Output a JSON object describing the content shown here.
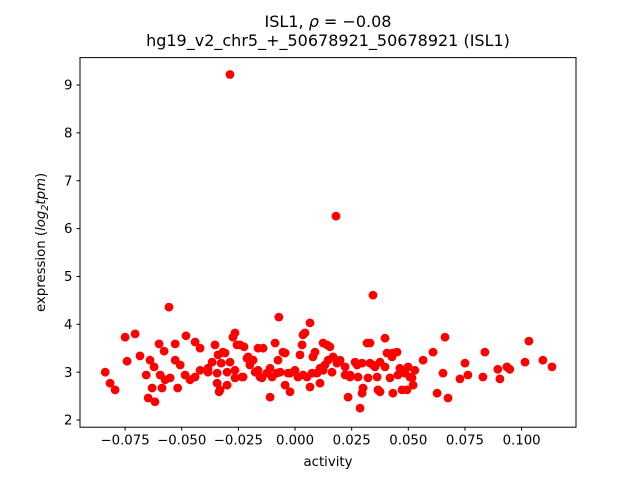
{
  "figure": {
    "background": "#ffffff",
    "frame_color": "#000000"
  },
  "chart_data": {
    "type": "scatter",
    "title_line1": "ISL1, ρ = −0.08",
    "title_line1_parts": [
      {
        "t": "ISL1, ",
        "i": false
      },
      {
        "t": "ρ",
        "i": true
      },
      {
        "t": " = −0.08",
        "i": false
      }
    ],
    "title_line2": "hg19_v2_chr5_+_50678921_50678921 (ISL1)",
    "xlabel": "activity",
    "ylabel": "expression (log₂tpm)",
    "ylabel_parts": [
      {
        "t": "expression (",
        "i": false
      },
      {
        "t": "log",
        "i": true
      },
      {
        "t": "2",
        "i": true,
        "sub": true
      },
      {
        "t": "tpm",
        "i": true
      },
      {
        "t": ")",
        "i": false
      }
    ],
    "xlim": [
      -0.0949,
      0.124
    ],
    "ylim": [
      1.85,
      9.573
    ],
    "x_ticks": [
      -0.075,
      -0.05,
      -0.025,
      0.0,
      0.025,
      0.05,
      0.075,
      0.1
    ],
    "x_tick_labels": [
      "−0.075",
      "−0.050",
      "−0.025",
      "0.000",
      "0.025",
      "0.050",
      "0.075",
      "0.100"
    ],
    "y_ticks": [
      2,
      3,
      4,
      5,
      6,
      7,
      8,
      9
    ],
    "y_tick_labels": [
      "2",
      "3",
      "4",
      "5",
      "6",
      "7",
      "8",
      "9"
    ],
    "grid": false,
    "legend": null,
    "marker": {
      "color": "#ff0000",
      "radius_px": 4.4
    },
    "series": [
      {
        "name": "ISL1",
        "points": [
          [
            -0.0838,
            3.0
          ],
          [
            -0.0816,
            2.77
          ],
          [
            -0.0794,
            2.63
          ],
          [
            -0.075,
            3.73
          ],
          [
            -0.0741,
            3.23
          ],
          [
            -0.0706,
            3.8
          ],
          [
            -0.0684,
            3.34
          ],
          [
            -0.0657,
            2.94
          ],
          [
            -0.0648,
            2.46
          ],
          [
            -0.064,
            3.25
          ],
          [
            -0.0631,
            2.67
          ],
          [
            -0.0622,
            3.11
          ],
          [
            -0.0618,
            2.38
          ],
          [
            -0.06,
            3.59
          ],
          [
            -0.0595,
            2.94
          ],
          [
            -0.0587,
            2.67
          ],
          [
            -0.0578,
            3.44
          ],
          [
            -0.0573,
            2.84
          ],
          [
            -0.0556,
            4.36
          ],
          [
            -0.0551,
            2.88
          ],
          [
            -0.0529,
            3.59
          ],
          [
            -0.0529,
            3.25
          ],
          [
            -0.0518,
            2.67
          ],
          [
            -0.0507,
            3.15
          ],
          [
            -0.0485,
            2.94
          ],
          [
            -0.0481,
            3.76
          ],
          [
            -0.0463,
            2.84
          ],
          [
            -0.0441,
            3.63
          ],
          [
            -0.0441,
            2.9
          ],
          [
            -0.0419,
            3.5
          ],
          [
            -0.0419,
            3.04
          ],
          [
            -0.0384,
            3.08
          ],
          [
            -0.0384,
            3.0
          ],
          [
            -0.0366,
            3.21
          ],
          [
            -0.0353,
            3.57
          ],
          [
            -0.0344,
            2.98
          ],
          [
            -0.0344,
            2.77
          ],
          [
            -0.034,
            3.36
          ],
          [
            -0.0335,
            2.59
          ],
          [
            -0.0331,
            2.63
          ],
          [
            -0.0326,
            3.19
          ],
          [
            -0.0318,
            3.42
          ],
          [
            -0.0309,
            3.4
          ],
          [
            -0.03,
            3.0
          ],
          [
            -0.03,
            2.73
          ],
          [
            -0.0287,
            9.22
          ],
          [
            -0.0287,
            3.21
          ],
          [
            -0.0274,
            3.73
          ],
          [
            -0.0265,
            3.82
          ],
          [
            -0.0265,
            3.04
          ],
          [
            -0.0265,
            2.88
          ],
          [
            -0.0256,
            3.57
          ],
          [
            -0.0243,
            3.57
          ],
          [
            -0.0234,
            2.9
          ],
          [
            -0.0229,
            2.9
          ],
          [
            -0.0225,
            3.53
          ],
          [
            -0.0212,
            3.29
          ],
          [
            -0.0207,
            3.32
          ],
          [
            -0.0199,
            3.15
          ],
          [
            -0.0185,
            3.25
          ],
          [
            -0.0176,
            3.0
          ],
          [
            -0.0163,
            3.5
          ],
          [
            -0.0163,
            3.04
          ],
          [
            -0.0154,
            2.9
          ],
          [
            -0.0146,
            2.88
          ],
          [
            -0.0141,
            3.5
          ],
          [
            -0.0124,
            2.98
          ],
          [
            -0.011,
            3.08
          ],
          [
            -0.011,
            2.48
          ],
          [
            -0.0101,
            2.9
          ],
          [
            -0.0088,
            3.61
          ],
          [
            -0.0079,
            2.98
          ],
          [
            -0.0075,
            3.25
          ],
          [
            -0.0071,
            4.15
          ],
          [
            -0.0066,
            3.0
          ],
          [
            -0.0053,
            3.42
          ],
          [
            -0.0044,
            3.4
          ],
          [
            -0.0044,
            2.73
          ],
          [
            -0.0031,
            2.98
          ],
          [
            -0.0022,
            2.98
          ],
          [
            -0.0022,
            2.59
          ],
          [
            0.0,
            3.04
          ],
          [
            0.0013,
            2.9
          ],
          [
            0.0022,
            3.36
          ],
          [
            0.0031,
            3.57
          ],
          [
            0.0035,
            3.78
          ],
          [
            0.0035,
            2.94
          ],
          [
            0.0044,
            3.82
          ],
          [
            0.0053,
            2.9
          ],
          [
            0.0066,
            4.03
          ],
          [
            0.0066,
            2.69
          ],
          [
            0.0075,
            2.98
          ],
          [
            0.0079,
            3.32
          ],
          [
            0.0088,
            3.42
          ],
          [
            0.0097,
            2.98
          ],
          [
            0.011,
            3.08
          ],
          [
            0.011,
            2.77
          ],
          [
            0.0124,
            3.61
          ],
          [
            0.0124,
            3.04
          ],
          [
            0.0132,
            3.15
          ],
          [
            0.0141,
            3.57
          ],
          [
            0.0146,
            3.25
          ],
          [
            0.0154,
            3.53
          ],
          [
            0.0163,
            3.0
          ],
          [
            0.0168,
            3.32
          ],
          [
            0.0181,
            6.26
          ],
          [
            0.0185,
            3.19
          ],
          [
            0.019,
            3.21
          ],
          [
            0.0199,
            3.25
          ],
          [
            0.0221,
            3.11
          ],
          [
            0.0221,
            2.94
          ],
          [
            0.0234,
            2.48
          ],
          [
            0.0243,
            2.94
          ],
          [
            0.0243,
            2.9
          ],
          [
            0.0265,
            3.21
          ],
          [
            0.0274,
            3.15
          ],
          [
            0.0278,
            2.9
          ],
          [
            0.0287,
            2.25
          ],
          [
            0.0296,
            3.19
          ],
          [
            0.0296,
            2.56
          ],
          [
            0.03,
            2.67
          ],
          [
            0.0318,
            3.61
          ],
          [
            0.0322,
            2.88
          ],
          [
            0.0331,
            3.61
          ],
          [
            0.0331,
            3.19
          ],
          [
            0.0344,
            4.61
          ],
          [
            0.0344,
            3.15
          ],
          [
            0.0353,
            3.11
          ],
          [
            0.0362,
            2.9
          ],
          [
            0.0366,
            2.63
          ],
          [
            0.0375,
            3.21
          ],
          [
            0.0375,
            2.59
          ],
          [
            0.0397,
            3.71
          ],
          [
            0.0397,
            3.11
          ],
          [
            0.0406,
            3.4
          ],
          [
            0.0419,
            2.88
          ],
          [
            0.0428,
            3.32
          ],
          [
            0.0432,
            3.4
          ],
          [
            0.0432,
            2.56
          ],
          [
            0.045,
            3.42
          ],
          [
            0.0454,
            2.94
          ],
          [
            0.0463,
            3.08
          ],
          [
            0.0472,
            2.63
          ],
          [
            0.0485,
            2.98
          ],
          [
            0.0494,
            2.63
          ],
          [
            0.0499,
            3.11
          ],
          [
            0.0507,
            2.9
          ],
          [
            0.0516,
            2.88
          ],
          [
            0.0521,
            2.73
          ],
          [
            0.0529,
            3.04
          ],
          [
            0.0565,
            3.25
          ],
          [
            0.0609,
            3.42
          ],
          [
            0.0627,
            2.56
          ],
          [
            0.0653,
            2.98
          ],
          [
            0.0662,
            3.73
          ],
          [
            0.0675,
            2.46
          ],
          [
            0.0728,
            2.86
          ],
          [
            0.075,
            3.19
          ],
          [
            0.0763,
            2.94
          ],
          [
            0.0829,
            2.9
          ],
          [
            0.0838,
            3.42
          ],
          [
            0.0895,
            3.06
          ],
          [
            0.0904,
            2.86
          ],
          [
            0.0935,
            3.11
          ],
          [
            0.0948,
            3.06
          ],
          [
            0.1015,
            3.21
          ],
          [
            0.1032,
            3.65
          ],
          [
            0.1094,
            3.25
          ],
          [
            0.1134,
            3.11
          ]
        ]
      }
    ]
  }
}
